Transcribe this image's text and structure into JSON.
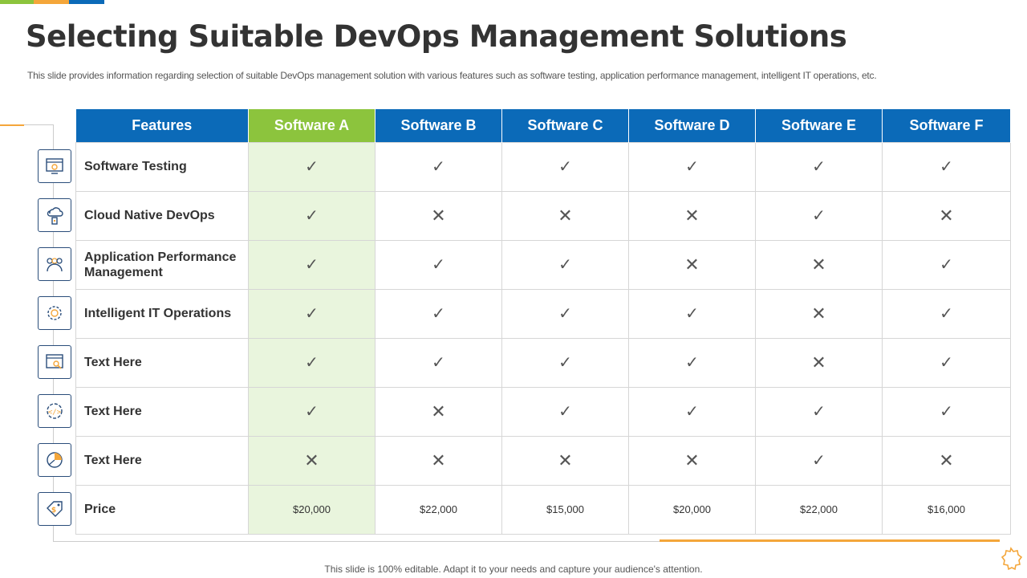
{
  "colors": {
    "bar1": "#8cc43d",
    "bar2": "#f4a63a",
    "bar3": "#0b6ab8",
    "header_blue": "#0b6ab8",
    "header_highlight": "#8cc43d",
    "column_highlight": "#e9f5dd",
    "accent_orange": "#f4a63a"
  },
  "slide": {
    "title": "Selecting Suitable DevOps Management Solutions",
    "subtitle": "This slide provides information regarding selection of suitable DevOps management solution with various features such as software testing, application performance management, intelligent IT operations, etc.",
    "footer": "This slide is 100% editable. Adapt it to your needs and capture your audience's attention."
  },
  "table": {
    "headers": [
      "Features",
      "Software A",
      "Software B",
      "Software C",
      "Software D",
      "Software E",
      "Software F"
    ],
    "highlight_column": 1,
    "rows": [
      {
        "feature": "Software Testing",
        "icon": "testing-screen-icon",
        "values": [
          "✓",
          "✓",
          "✓",
          "✓",
          "✓",
          "✓"
        ]
      },
      {
        "feature": "Cloud Native DevOps",
        "icon": "cloud-device-icon",
        "values": [
          "✓",
          "✕",
          "✕",
          "✕",
          "✓",
          "✕"
        ]
      },
      {
        "feature": "Application Performance Management",
        "icon": "performance-gauge-icon",
        "values": [
          "✓",
          "✓",
          "✓",
          "✕",
          "✕",
          "✓"
        ]
      },
      {
        "feature": "Intelligent IT Operations",
        "icon": "gear-cluster-icon",
        "values": [
          "✓",
          "✓",
          "✓",
          "✓",
          "✕",
          "✓"
        ]
      },
      {
        "feature": "Text Here",
        "icon": "browser-search-icon",
        "values": [
          "✓",
          "✓",
          "✓",
          "✓",
          "✕",
          "✓"
        ]
      },
      {
        "feature": "Text Here",
        "icon": "code-gear-icon",
        "values": [
          "✓",
          "✕",
          "✓",
          "✓",
          "✓",
          "✓"
        ]
      },
      {
        "feature": "Text Here",
        "icon": "pie-chart-icon",
        "values": [
          "✕",
          "✕",
          "✕",
          "✕",
          "✓",
          "✕"
        ]
      },
      {
        "feature": "Price",
        "icon": "price-tag-icon",
        "values": [
          "$20,000",
          "$22,000",
          "$15,000",
          "$20,000",
          "$22,000",
          "$16,000"
        ]
      }
    ]
  }
}
